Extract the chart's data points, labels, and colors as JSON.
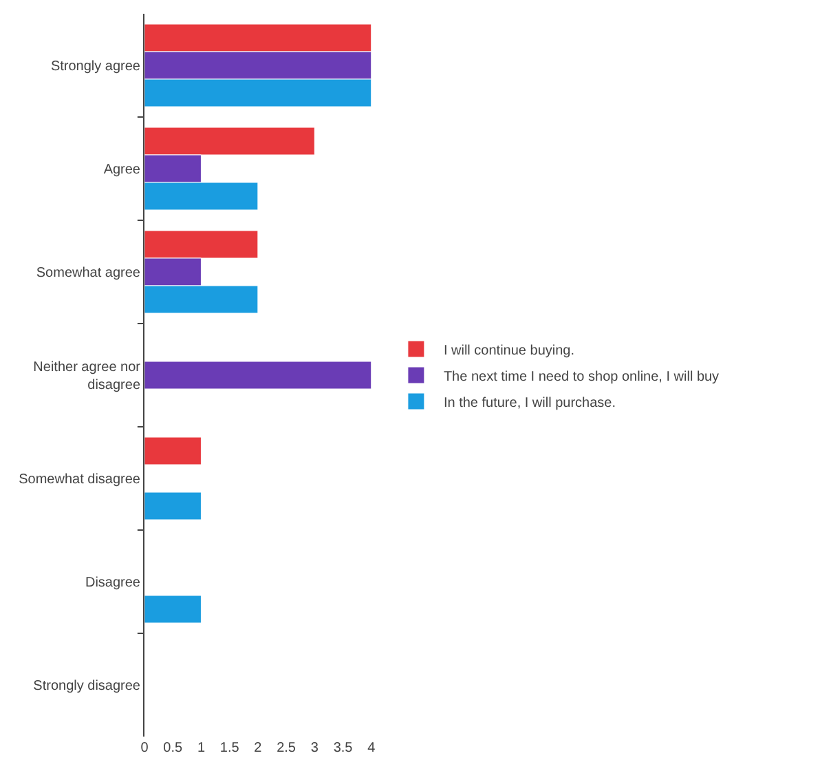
{
  "chart_data": {
    "type": "bar",
    "orientation": "horizontal",
    "categories": [
      "Strongly agree",
      "Agree",
      "Somewhat agree",
      "Neither agree nor disagree",
      "Somewhat disagree",
      "Disagree",
      "Strongly disagree"
    ],
    "series": [
      {
        "name": "I will continue buying.",
        "color": "#e8383d",
        "values": [
          4,
          3,
          2,
          null,
          1,
          null,
          null
        ]
      },
      {
        "name": "The next time I need to shop online, I will buy",
        "color": "#6a3cb5",
        "values": [
          4,
          1,
          1,
          4,
          null,
          null,
          null
        ]
      },
      {
        "name": "In the future, I will purchase.",
        "color": "#1a9de0",
        "values": [
          4,
          2,
          2,
          null,
          1,
          1,
          null
        ]
      }
    ],
    "xlim": [
      0,
      4.1
    ],
    "xticks": [
      0,
      0.5,
      1,
      1.5,
      2,
      2.5,
      3,
      3.5,
      4
    ],
    "grid": false,
    "legend": "right"
  }
}
